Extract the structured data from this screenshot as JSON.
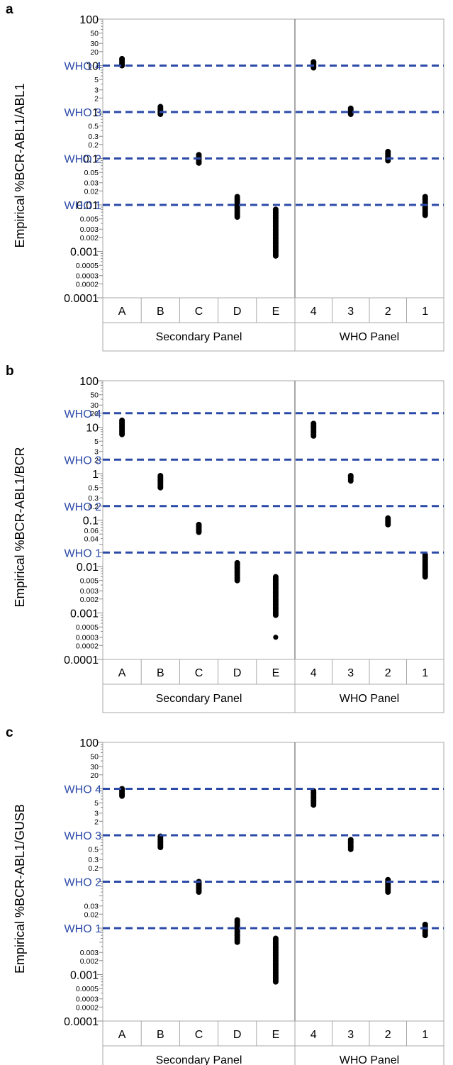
{
  "chart_data": [
    {
      "panel": "a",
      "type": "scatter",
      "ylabel": "Empirical %BCR-ABL1/ABL1",
      "yscale": "log",
      "ylim": [
        0.0001,
        100
      ],
      "yticks_major": [
        "100",
        "10",
        "1",
        "0.1",
        "0.01",
        "0.001",
        "0.0001"
      ],
      "yticks_minor": [
        "50",
        "30",
        "20",
        "5",
        "3",
        "2",
        "0.5",
        "0.3",
        "0.2",
        "0.05",
        "0.03",
        "0.02",
        "0.005",
        "0.003",
        "0.002",
        "0.0005",
        "0.0003",
        "0.0002"
      ],
      "categories": [
        "A",
        "B",
        "C",
        "D",
        "E",
        "4",
        "3",
        "2",
        "1"
      ],
      "groups": [
        {
          "name": "Secondary Panel",
          "count": 5
        },
        {
          "name": "WHO Panel",
          "count": 4
        }
      ],
      "reference_lines": [
        {
          "label": "WHO 4",
          "value": 10
        },
        {
          "label": "WHO 3",
          "value": 1
        },
        {
          "label": "WHO 2",
          "value": 0.1
        },
        {
          "label": "WHO 1",
          "value": 0.01
        }
      ],
      "series": [
        {
          "category": "A",
          "min": 10,
          "max": 14
        },
        {
          "category": "B",
          "min": 0.9,
          "max": 1.3
        },
        {
          "category": "C",
          "min": 0.08,
          "max": 0.12
        },
        {
          "category": "D",
          "min": 0.0055,
          "max": 0.015
        },
        {
          "category": "E",
          "min": 0.0008,
          "max": 0.008,
          "outliers": [
            0.0008
          ]
        },
        {
          "category": "4",
          "min": 9,
          "max": 12
        },
        {
          "category": "3",
          "min": 0.9,
          "max": 1.2
        },
        {
          "category": "2",
          "min": 0.09,
          "max": 0.14
        },
        {
          "category": "1",
          "min": 0.006,
          "max": 0.015
        }
      ]
    },
    {
      "panel": "b",
      "type": "scatter",
      "ylabel": "Empirical %BCR-ABL1/BCR",
      "yscale": "log",
      "ylim": [
        0.0001,
        100
      ],
      "yticks_major": [
        "100",
        "10",
        "1",
        "0.1",
        "0.01",
        "0.001",
        "0.0001"
      ],
      "yticks_minor": [
        "50",
        "30",
        "20",
        "5",
        "3",
        "2",
        "0.5",
        "0.3",
        "0.2",
        "0.06",
        "0.04",
        "0.005",
        "0.003",
        "0.002",
        "0.0005",
        "0.0003",
        "0.0002"
      ],
      "categories": [
        "A",
        "B",
        "C",
        "D",
        "E",
        "4",
        "3",
        "2",
        "1"
      ],
      "groups": [
        {
          "name": "Secondary Panel",
          "count": 5
        },
        {
          "name": "WHO Panel",
          "count": 4
        }
      ],
      "reference_lines": [
        {
          "label": "WHO 4",
          "value": 20
        },
        {
          "label": "WHO 3",
          "value": 2
        },
        {
          "label": "WHO 2",
          "value": 0.2
        },
        {
          "label": "WHO 1",
          "value": 0.02
        }
      ],
      "series": [
        {
          "category": "A",
          "min": 7,
          "max": 14
        },
        {
          "category": "B",
          "min": 0.5,
          "max": 0.9
        },
        {
          "category": "C",
          "min": 0.055,
          "max": 0.08
        },
        {
          "category": "D",
          "min": 0.005,
          "max": 0.012
        },
        {
          "category": "E",
          "min": 0.0009,
          "max": 0.006,
          "outliers": [
            0.0003
          ]
        },
        {
          "category": "4",
          "min": 6.5,
          "max": 12
        },
        {
          "category": "3",
          "min": 0.7,
          "max": 0.9
        },
        {
          "category": "2",
          "min": 0.08,
          "max": 0.11
        },
        {
          "category": "1",
          "min": 0.006,
          "max": 0.018
        }
      ]
    },
    {
      "panel": "c",
      "type": "scatter",
      "ylabel": "Empirical %BCR-ABL1/GUSB",
      "yscale": "log",
      "ylim": [
        0.0001,
        100
      ],
      "yticks_major": [
        "100",
        "0.001",
        "0.0001"
      ],
      "yticks_minor": [
        "50",
        "30",
        "20",
        "5",
        "3",
        "2",
        "0.5",
        "0.3",
        "0.2",
        "0.03",
        "0.02",
        "0.003",
        "0.002",
        "0.0005",
        "0.0003",
        "0.0002"
      ],
      "categories": [
        "A",
        "B",
        "C",
        "D",
        "E",
        "4",
        "3",
        "2",
        "1"
      ],
      "groups": [
        {
          "name": "Secondary Panel",
          "count": 5
        },
        {
          "name": "WHO Panel",
          "count": 4
        }
      ],
      "reference_lines": [
        {
          "label": "WHO 4",
          "value": 10
        },
        {
          "label": "WHO 3",
          "value": 1
        },
        {
          "label": "WHO 2",
          "value": 0.1
        },
        {
          "label": "WHO 1",
          "value": 0.01
        }
      ],
      "series": [
        {
          "category": "A",
          "min": 7,
          "max": 10
        },
        {
          "category": "B",
          "min": 0.55,
          "max": 0.95
        },
        {
          "category": "C",
          "min": 0.06,
          "max": 0.1
        },
        {
          "category": "D",
          "min": 0.005,
          "max": 0.015
        },
        {
          "category": "E",
          "min": 0.0007,
          "max": 0.006,
          "outliers": [
            0.0007
          ]
        },
        {
          "category": "4",
          "min": 4.5,
          "max": 9
        },
        {
          "category": "3",
          "min": 0.5,
          "max": 0.8
        },
        {
          "category": "2",
          "min": 0.06,
          "max": 0.11
        },
        {
          "category": "1",
          "min": 0.007,
          "max": 0.012
        }
      ]
    }
  ]
}
